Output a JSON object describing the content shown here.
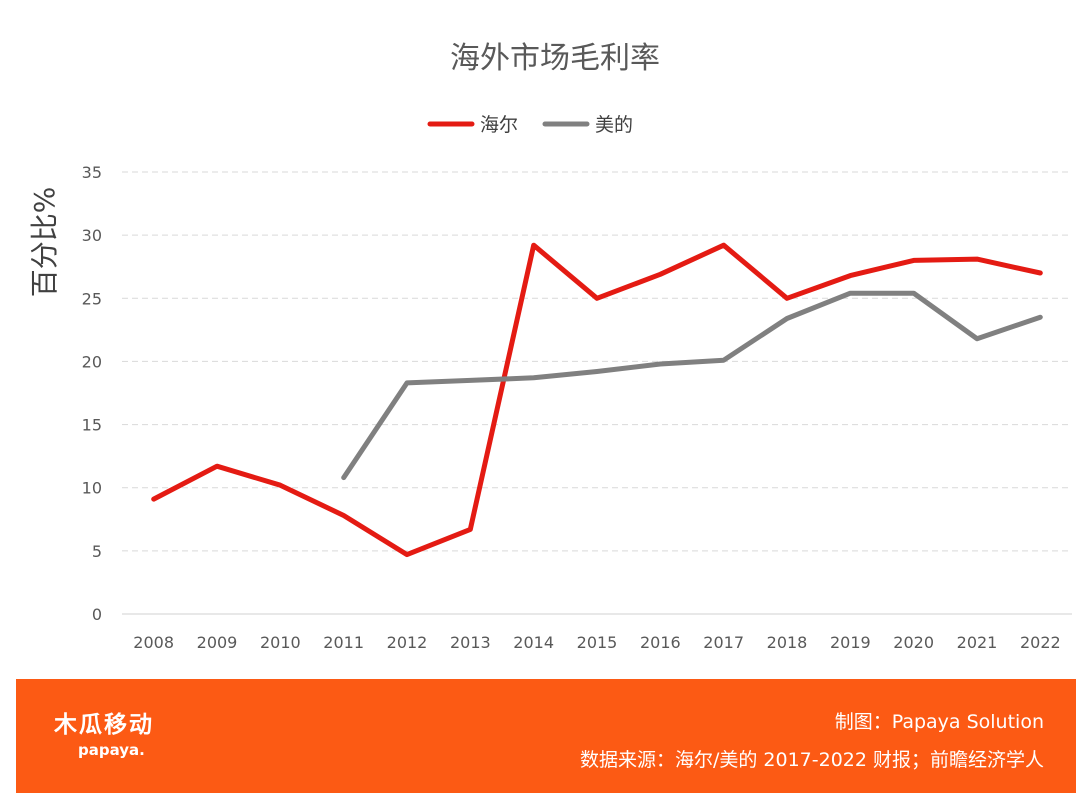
{
  "chart_data": {
    "type": "line",
    "title": "海外市场毛利率",
    "ylabel": "百分比%",
    "xlabel": "",
    "categories": [
      "2008",
      "2009",
      "2010",
      "2011",
      "2012",
      "2013",
      "2014",
      "2015",
      "2016",
      "2017",
      "2018",
      "2019",
      "2020",
      "2021",
      "2022"
    ],
    "ylim": [
      0,
      35
    ],
    "yticks": [
      0,
      5,
      10,
      15,
      20,
      25,
      30,
      35
    ],
    "grid": true,
    "legend_position": "top",
    "series": [
      {
        "name": "海尔",
        "color": "#e41b13",
        "values": [
          9.1,
          11.7,
          10.2,
          7.8,
          4.7,
          6.7,
          29.2,
          25.0,
          26.9,
          29.2,
          25.0,
          26.8,
          28.0,
          28.1,
          27.0
        ]
      },
      {
        "name": "美的",
        "color": "#808080",
        "values": [
          null,
          null,
          null,
          10.8,
          18.3,
          18.5,
          18.7,
          19.2,
          19.8,
          20.1,
          23.4,
          25.4,
          25.4,
          21.8,
          23.5
        ]
      }
    ]
  },
  "footer": {
    "credit": "制图：Papaya Solution",
    "source": "数据来源：海尔/美的 2017-2022 财报；前瞻经济学人",
    "brand_cn": "木瓜移动",
    "brand_en": "papaya."
  }
}
